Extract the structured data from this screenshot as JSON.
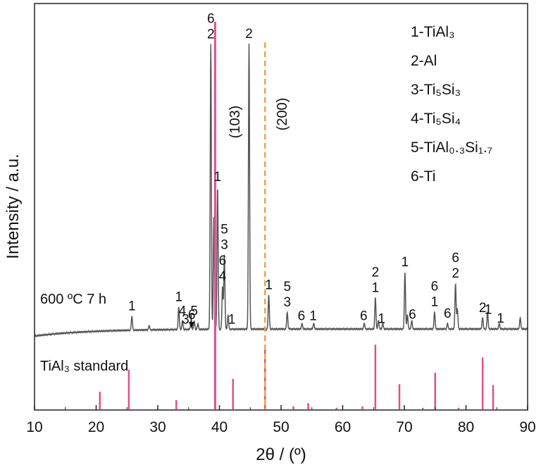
{
  "chart_data": {
    "type": "line",
    "xlabel": "2θ / (º)",
    "ylabel": "Intensity / a.u.",
    "xlim": [
      10,
      90
    ],
    "xticks": [
      10,
      20,
      30,
      40,
      50,
      60,
      70,
      80,
      90
    ],
    "grid": false,
    "sample_label": "600 ºC 7 h",
    "standard_label": "TiAl₃ standard",
    "legend": {
      "placement": "top-right",
      "entries": [
        "1-TiAl₃",
        "2-Al",
        "3-Ti₅Si₃",
        "4-Ti₅Si₄",
        "5-TiAl₀.₃Si₁.₇",
        "6-Ti"
      ]
    },
    "colors": {
      "pattern": "#555555",
      "standard": "#e0508a",
      "reference_line": "#f0a050",
      "axis": "#222222"
    },
    "reference_lines": [
      {
        "x": 39.3,
        "label": "(103)",
        "style": "solid"
      },
      {
        "x": 47.4,
        "label": "(200)",
        "style": "dashed"
      }
    ],
    "pattern_peaks": [
      {
        "x": 25.8,
        "h": 5
      },
      {
        "x": 28.6,
        "h": 1.5
      },
      {
        "x": 33.4,
        "h": 8
      },
      {
        "x": 34.0,
        "h": 3
      },
      {
        "x": 35.4,
        "h": 3
      },
      {
        "x": 35.9,
        "h": 3
      },
      {
        "x": 36.5,
        "h": 2
      },
      {
        "x": 38.6,
        "h": 100
      },
      {
        "x": 39.1,
        "h": 40
      },
      {
        "x": 39.7,
        "h": 50
      },
      {
        "x": 40.5,
        "h": 15
      },
      {
        "x": 40.8,
        "h": 26
      },
      {
        "x": 41.4,
        "h": 5
      },
      {
        "x": 44.8,
        "h": 100
      },
      {
        "x": 48.0,
        "h": 12
      },
      {
        "x": 51.0,
        "h": 6
      },
      {
        "x": 53.4,
        "h": 2
      },
      {
        "x": 55.3,
        "h": 2
      },
      {
        "x": 63.5,
        "h": 2
      },
      {
        "x": 65.3,
        "h": 11
      },
      {
        "x": 65.8,
        "h": 3
      },
      {
        "x": 66.5,
        "h": 2
      },
      {
        "x": 70.1,
        "h": 20
      },
      {
        "x": 70.5,
        "h": 5
      },
      {
        "x": 71.2,
        "h": 3
      },
      {
        "x": 74.9,
        "h": 6
      },
      {
        "x": 77.0,
        "h": 2
      },
      {
        "x": 78.3,
        "h": 16
      },
      {
        "x": 78.6,
        "h": 7
      },
      {
        "x": 82.7,
        "h": 4
      },
      {
        "x": 83.5,
        "h": 6
      },
      {
        "x": 85.4,
        "h": 2
      },
      {
        "x": 88.8,
        "h": 4
      }
    ],
    "standard_peaks": [
      {
        "x": 20.6,
        "h": 23
      },
      {
        "x": 25.3,
        "h": 52
      },
      {
        "x": 33.0,
        "h": 12
      },
      {
        "x": 39.3,
        "h": 100
      },
      {
        "x": 42.2,
        "h": 40
      },
      {
        "x": 47.4,
        "h": 80
      },
      {
        "x": 52.0,
        "h": 4
      },
      {
        "x": 54.4,
        "h": 8
      },
      {
        "x": 59.0,
        "h": 2
      },
      {
        "x": 63.2,
        "h": 4
      },
      {
        "x": 65.3,
        "h": 85
      },
      {
        "x": 69.2,
        "h": 33
      },
      {
        "x": 73.0,
        "h": 2
      },
      {
        "x": 75.0,
        "h": 48
      },
      {
        "x": 78.8,
        "h": 2
      },
      {
        "x": 82.7,
        "h": 68
      },
      {
        "x": 84.4,
        "h": 32
      }
    ],
    "peak_labels": [
      {
        "x": 25.8,
        "text": "1"
      },
      {
        "x": 33.4,
        "text": "1"
      },
      {
        "x": 34.0,
        "text": "4"
      },
      {
        "x": 34.5,
        "text": "3"
      },
      {
        "x": 35.9,
        "text": "5"
      },
      {
        "x": 35.5,
        "text": "6"
      },
      {
        "x": 38.6,
        "text": "6"
      },
      {
        "x": 38.6,
        "text": "2"
      },
      {
        "x": 39.7,
        "text": "1"
      },
      {
        "x": 40.8,
        "text": "5"
      },
      {
        "x": 40.8,
        "text": "3"
      },
      {
        "x": 40.5,
        "text": "6"
      },
      {
        "x": 40.5,
        "text": "4"
      },
      {
        "x": 42.0,
        "text": "1"
      },
      {
        "x": 44.8,
        "text": "2"
      },
      {
        "x": 48.0,
        "text": "1"
      },
      {
        "x": 51.0,
        "text": "5"
      },
      {
        "x": 51.0,
        "text": "3"
      },
      {
        "x": 53.3,
        "text": "6"
      },
      {
        "x": 55.2,
        "text": "1"
      },
      {
        "x": 63.4,
        "text": "6"
      },
      {
        "x": 65.3,
        "text": "2"
      },
      {
        "x": 65.3,
        "text": "1"
      },
      {
        "x": 66.3,
        "text": "1"
      },
      {
        "x": 70.1,
        "text": "1"
      },
      {
        "x": 71.3,
        "text": "6"
      },
      {
        "x": 74.9,
        "text": "6"
      },
      {
        "x": 74.9,
        "text": "1"
      },
      {
        "x": 77.0,
        "text": "6"
      },
      {
        "x": 78.3,
        "text": "6"
      },
      {
        "x": 78.3,
        "text": "2"
      },
      {
        "x": 82.7,
        "text": "2"
      },
      {
        "x": 83.6,
        "text": "1"
      },
      {
        "x": 85.6,
        "text": "1"
      }
    ]
  }
}
